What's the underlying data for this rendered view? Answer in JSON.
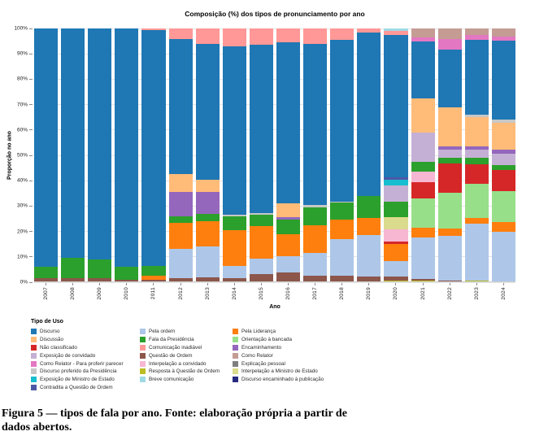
{
  "chart_data": {
    "type": "stacked-bar-percent",
    "title": "Composição (%) dos tipos de pronunciamento por ano",
    "xlabel": "Ano",
    "ylabel": "Proporção no ano",
    "ylim": [
      0,
      100
    ],
    "y_tick_step": 10,
    "y_tick_suffix": "%",
    "grid": true,
    "legend_title": "Tipo de Uso",
    "series_colors": {
      "Discurso": "#1f77b4",
      "Discussão": "#ffbb78",
      "Não classificado": "#d62728",
      "Exposição de convidado": "#c5b0d5",
      "Como Relator - Para proferir parecer": "#e377c2",
      "Discurso proferido da Presidência": "#c7c7c7",
      "Exposição de Ministro de Estado": "#17becf",
      "Contradita a Questão de Ordem": "#4d57a5",
      "Pela ordem": "#aec7e8",
      "Fala da Presidência": "#2ca02c",
      "Comunicação inadiável": "#ff9896",
      "Questão de Ordem": "#8c564b",
      "Interpelação a convidado": "#f7b6d2",
      "Resposta à Questão de Ordem": "#bcbd22",
      "Breve comunicação": "#9edae5",
      "Pela Liderança": "#ff7f0e",
      "Orientação à bancada": "#98df8a",
      "Encaminhamento": "#9467bd",
      "Como Relator": "#c49c94",
      "Explicação pessoal": "#7f7f7f",
      "Interpelação a Ministro de Estado": "#dbdb8d",
      "Discurso encaminhado à publicação": "#262a80"
    },
    "legend_columns": [
      [
        "Discurso",
        "Discussão",
        "Não classificado",
        "Exposição de convidado",
        "Como Relator - Para proferir parecer",
        "Discurso proferido da Presidência",
        "Exposição de Ministro de Estado",
        "Contradita a Questão de Ordem"
      ],
      [
        "Pela ordem",
        "Fala da Presidência",
        "Comunicação inadiável",
        "Questão de Ordem",
        "Interpelação a convidado",
        "Resposta à Questão de Ordem",
        "Breve comunicação"
      ],
      [
        "Pela Liderança",
        "Orientação à bancada",
        "Encaminhamento",
        "Como Relator",
        "Explicação pessoal",
        "Interpelação a Ministro de Estado",
        "Discurso encaminhado à publicação"
      ]
    ],
    "categories": [
      "2007",
      "2008",
      "2009",
      "2010",
      "2011",
      "2012",
      "2013",
      "2014",
      "2015",
      "2016",
      "2017",
      "2018",
      "2019",
      "2020",
      "2021",
      "2022",
      "2023",
      "2024"
    ],
    "stacks": {
      "2007": [
        [
          "Questão de Ordem",
          1.5
        ],
        [
          "Fala da Presidência",
          4.5
        ],
        [
          "Discurso",
          94
        ]
      ],
      "2008": [
        [
          "Questão de Ordem",
          1.5
        ],
        [
          "Fala da Presidência",
          8
        ],
        [
          "Discurso",
          90.5
        ]
      ],
      "2009": [
        [
          "Questão de Ordem",
          1.5
        ],
        [
          "Fala da Presidência",
          7.5
        ],
        [
          "Discurso",
          91
        ]
      ],
      "2010": [
        [
          "Questão de Ordem",
          1
        ],
        [
          "Fala da Presidência",
          5
        ],
        [
          "Discurso",
          94
        ]
      ],
      "2011": [
        [
          "Questão de Ordem",
          1
        ],
        [
          "Pela Liderança",
          1.5
        ],
        [
          "Fala da Presidência",
          3.8
        ],
        [
          "Discurso",
          93.2
        ],
        [
          "Comunicação inadiável",
          0.5
        ]
      ],
      "2012": [
        [
          "Questão de Ordem",
          1.5
        ],
        [
          "Pela ordem",
          11.5
        ],
        [
          "Pela Liderança",
          10.5
        ],
        [
          "Fala da Presidência",
          2.5
        ],
        [
          "Encaminhamento",
          9.5
        ],
        [
          "Discussão",
          7
        ],
        [
          "Discurso",
          53.5
        ],
        [
          "Comunicação inadiável",
          4
        ]
      ],
      "2013": [
        [
          "Questão de Ordem",
          2
        ],
        [
          "Pela ordem",
          12
        ],
        [
          "Pela Liderança",
          10
        ],
        [
          "Fala da Presidência",
          3
        ],
        [
          "Encaminhamento",
          8.5
        ],
        [
          "Discussão",
          5
        ],
        [
          "Discurso",
          53.5
        ],
        [
          "Comunicação inadiável",
          6
        ]
      ],
      "2014": [
        [
          "Questão de Ordem",
          1.5
        ],
        [
          "Pela ordem",
          5
        ],
        [
          "Pela Liderança",
          14
        ],
        [
          "Fala da Presidência",
          5.5
        ],
        [
          "Discurso proferido da Presidência",
          0.5
        ],
        [
          "Discurso",
          66.5
        ],
        [
          "Comunicação inadiável",
          7
        ]
      ],
      "2015": [
        [
          "Questão de Ordem",
          3.3
        ],
        [
          "Pela ordem",
          6
        ],
        [
          "Pela Liderança",
          12.7
        ],
        [
          "Fala da Presidência",
          4.6
        ],
        [
          "Discurso proferido da Presidência",
          0.7
        ],
        [
          "Discurso",
          66.2
        ],
        [
          "Comunicação inadiável",
          6.5
        ]
      ],
      "2016": [
        [
          "Questão de Ordem",
          3.8
        ],
        [
          "Pela ordem",
          6.6
        ],
        [
          "Pela Liderança",
          8.4
        ],
        [
          "Fala da Presidência",
          5.9
        ],
        [
          "Encaminhamento",
          1
        ],
        [
          "Discussão",
          5.4
        ],
        [
          "Discurso",
          63.4
        ],
        [
          "Comunicação inadiável",
          5.5
        ]
      ],
      "2017": [
        [
          "Questão de Ordem",
          2.5
        ],
        [
          "Pela ordem",
          9
        ],
        [
          "Pela Liderança",
          11
        ],
        [
          "Fala da Presidência",
          7
        ],
        [
          "Discurso proferido da Presidência",
          1
        ],
        [
          "Discurso",
          63.5
        ],
        [
          "Comunicação inadiável",
          6
        ]
      ],
      "2018": [
        [
          "Questão de Ordem",
          2.7
        ],
        [
          "Pela ordem",
          14.3
        ],
        [
          "Pela Liderança",
          7.7
        ],
        [
          "Fala da Presidência",
          6.6
        ],
        [
          "Discurso proferido da Presidência",
          0.5
        ],
        [
          "Discurso",
          63.7
        ],
        [
          "Comunicação inadiável",
          4.5
        ]
      ],
      "2019": [
        [
          "Questão de Ordem",
          2.2
        ],
        [
          "Pela ordem",
          16.5
        ],
        [
          "Pela Liderança",
          6.6
        ],
        [
          "Fala da Presidência",
          8.8
        ],
        [
          "Discurso",
          64.4
        ],
        [
          "Comunicação inadiável",
          1.5
        ]
      ],
      "2020": [
        [
          "Resposta à Questão de Ordem",
          0.7
        ],
        [
          "Questão de Ordem",
          1.5
        ],
        [
          "Pela ordem",
          6
        ],
        [
          "Pela Liderança",
          7
        ],
        [
          "Não classificado",
          1
        ],
        [
          "Interpelação a convidado",
          4.8
        ],
        [
          "Interpelação a Ministro de Estado",
          4.8
        ],
        [
          "Fala da Presidência",
          5.9
        ],
        [
          "Exposição de convidado",
          6.4
        ],
        [
          "Exposição de Ministro de Estado",
          2.2
        ],
        [
          "Contradita a Questão de Ordem",
          1
        ],
        [
          "Discurso",
          56.2
        ],
        [
          "Comunicação inadiável",
          1.5
        ],
        [
          "Breve comunicação",
          1
        ]
      ],
      "2021": [
        [
          "Resposta à Questão de Ordem",
          0.5
        ],
        [
          "Questão de Ordem",
          0.8
        ],
        [
          "Pela ordem",
          16.4
        ],
        [
          "Pela Liderança",
          3.8
        ],
        [
          "Orientação à bancada",
          11.5
        ],
        [
          "Não classificado",
          6.5
        ],
        [
          "Interpelação a convidado",
          4
        ],
        [
          "Fala da Presidência",
          4
        ],
        [
          "Exposição de convidado",
          11.5
        ],
        [
          "Discussão",
          13.5
        ],
        [
          "Discurso",
          22.5
        ],
        [
          "Como Relator - Para proferir parecer",
          1.6
        ],
        [
          "Como Relator",
          3.4
        ]
      ],
      "2022": [
        [
          "Resposta à Questão de Ordem",
          0.3
        ],
        [
          "Questão de Ordem",
          0.5
        ],
        [
          "Pela ordem",
          17.6
        ],
        [
          "Pela Liderança",
          2.8
        ],
        [
          "Orientação à bancada",
          14.1
        ],
        [
          "Não classificado",
          11.5
        ],
        [
          "Fala da Presidência",
          2.2
        ],
        [
          "Exposição de convidado",
          3.3
        ],
        [
          "Encaminhamento",
          1.1
        ],
        [
          "Discussão",
          15.5
        ],
        [
          "Discurso",
          22.8
        ],
        [
          "Como Relator - Para proferir parecer",
          4.3
        ],
        [
          "Como Relator",
          4
        ]
      ],
      "2023": [
        [
          "Resposta à Questão de Ordem",
          0.8
        ],
        [
          "Pela ordem",
          22.3
        ],
        [
          "Pela Liderança",
          2.2
        ],
        [
          "Orientação à bancada",
          13.4
        ],
        [
          "Não classificado",
          7.7
        ],
        [
          "Fala da Presidência",
          2.7
        ],
        [
          "Exposição de convidado",
          3.3
        ],
        [
          "Encaminhamento",
          1.1
        ],
        [
          "Discussão",
          11.5
        ],
        [
          "Discurso proferido da Presidência",
          1.1
        ],
        [
          "Discurso",
          29.6
        ],
        [
          "Como Relator - Para proferir parecer",
          1.7
        ],
        [
          "Como Relator",
          2.6
        ]
      ],
      "2024": [
        [
          "Resposta à Questão de Ordem",
          0.4
        ],
        [
          "Pela ordem",
          19.5
        ],
        [
          "Pela Liderança",
          3.9
        ],
        [
          "Orientação à bancada",
          12.1
        ],
        [
          "Não classificado",
          8.2
        ],
        [
          "Fala da Presidência",
          2.2
        ],
        [
          "Exposição de convidado",
          4.4
        ],
        [
          "Encaminhamento",
          1.7
        ],
        [
          "Discussão",
          10.5
        ],
        [
          "Discurso proferido da Presidência",
          1.1
        ],
        [
          "Discurso",
          31.2
        ],
        [
          "Como Relator - Para proferir parecer",
          1.6
        ],
        [
          "Como Relator",
          3.2
        ]
      ]
    }
  },
  "caption": {
    "line1": "Figura 5 — tipos de fala por ano. Fonte: elaboração própria a partir de",
    "line2": "dados abertos."
  }
}
